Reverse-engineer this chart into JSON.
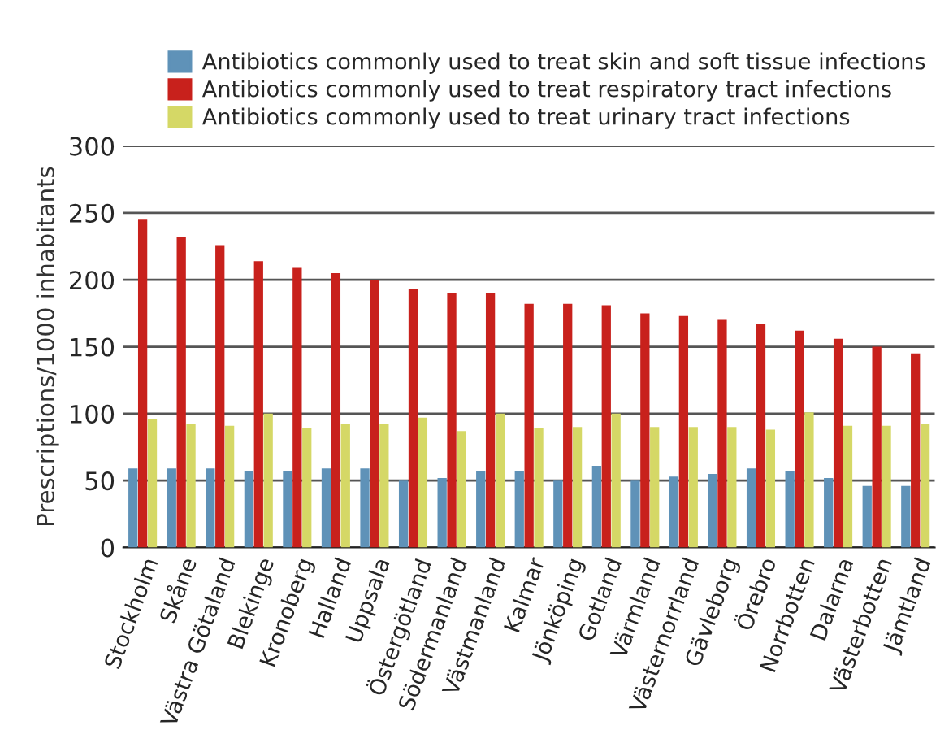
{
  "chart_data": {
    "type": "bar",
    "ylabel": "Prescriptions/1000 inhabitants",
    "categories": [
      "Stockholm",
      "Skåne",
      "Västra Götaland",
      "Blekinge",
      "Kronoberg",
      "Halland",
      "Uppsala",
      "Östergötland",
      "Södermanland",
      "Västmanland",
      "Kalmar",
      "Jönköping",
      "Gotland",
      "Värmland",
      "Västernorrland",
      "Gävleborg",
      "Örebro",
      "Norrbotten",
      "Dalarna",
      "Västerbotten",
      "Jämtland"
    ],
    "series": [
      {
        "name": "Antibiotics commonly used to treat skin and soft tissue infections",
        "color": "#5f92b8",
        "values": [
          59,
          59,
          59,
          57,
          57,
          59,
          59,
          50,
          52,
          57,
          57,
          50,
          61,
          50,
          53,
          55,
          59,
          57,
          52,
          46,
          46
        ]
      },
      {
        "name": "Antibiotics commonly used to treat respiratory tract infections",
        "color": "#c8211c",
        "values": [
          245,
          232,
          226,
          214,
          209,
          205,
          200,
          193,
          190,
          190,
          182,
          182,
          181,
          175,
          173,
          170,
          167,
          162,
          156,
          150,
          145
        ]
      },
      {
        "name": "Antibiotics commonly used to treat urinary tract infections",
        "color": "#d5d866",
        "values": [
          96,
          92,
          91,
          100,
          89,
          92,
          92,
          97,
          87,
          100,
          89,
          90,
          100,
          90,
          90,
          90,
          88,
          101,
          91,
          91,
          92
        ]
      }
    ],
    "ylim": [
      0,
      300
    ],
    "yticks": [
      0,
      50,
      100,
      150,
      200,
      250,
      300
    ],
    "grid": "y",
    "legend": "top right"
  }
}
